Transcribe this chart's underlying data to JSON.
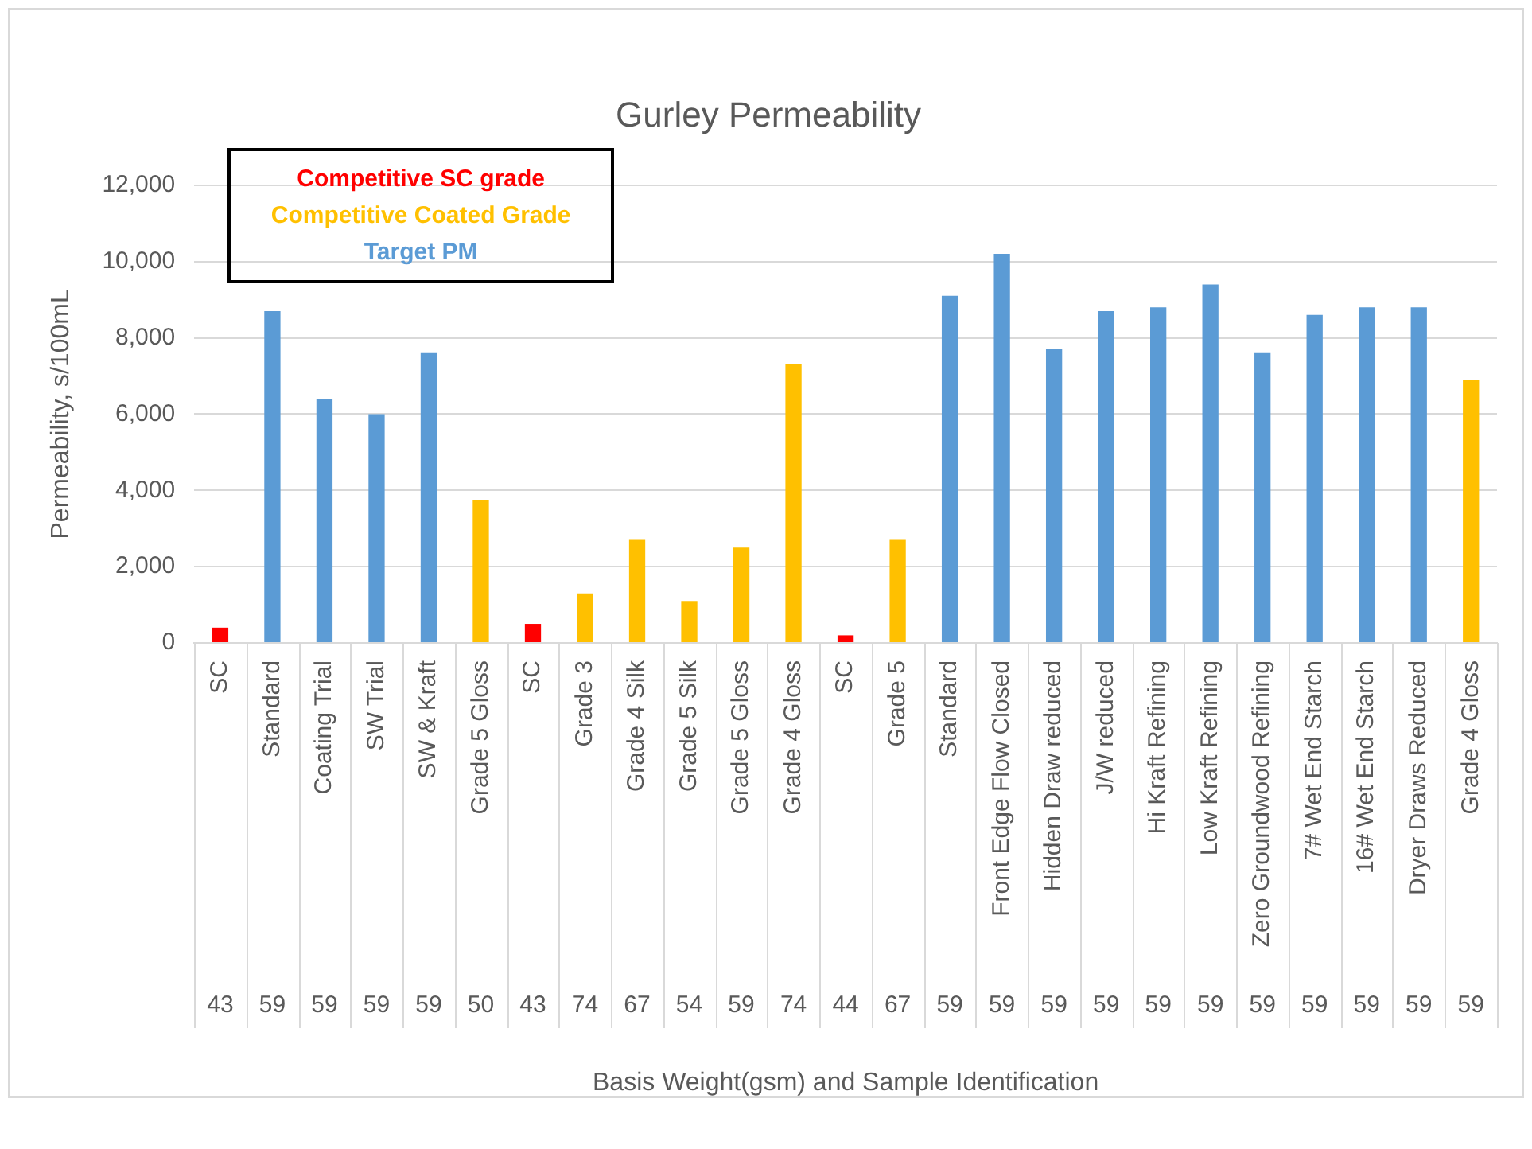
{
  "chart_data": {
    "type": "bar",
    "title": "Gurley Permeability",
    "xlabel": "Basis Weight(gsm) and Sample Identification",
    "ylabel": "Permeability, s/100mL",
    "categories": [
      "SC",
      "Standard",
      "Coating Trial",
      "SW Trial",
      "SW & Kraft",
      "Grade 5 Gloss",
      "SC",
      "Grade 3",
      "Grade 4 Silk",
      "Grade 5 Silk",
      "Grade 5 Gloss",
      "Grade 4 Gloss",
      "SC",
      "Grade 5",
      "Standard",
      "Front Edge Flow Closed",
      "Hidden Draw reduced",
      "J/W reduced",
      "Hi Kraft Refining",
      "Low Kraft Refining",
      "Zero Groundwood Refining",
      "7# Wet End Starch",
      "16# Wet End Starch",
      "Dryer Draws Reduced",
      "Grade 4 Gloss"
    ],
    "annotations": [
      "43",
      "59",
      "59",
      "59",
      "59",
      "50",
      "43",
      "74",
      "67",
      "54",
      "59",
      "74",
      "44",
      "67",
      "59",
      "59",
      "59",
      "59",
      "59",
      "59",
      "59",
      "59",
      "59",
      "59",
      "59"
    ],
    "series": [
      {
        "name": "Competitive SC grade",
        "color": "#ff0000",
        "values": [
          400,
          null,
          null,
          null,
          null,
          null,
          500,
          null,
          null,
          null,
          null,
          null,
          200,
          null,
          null,
          null,
          null,
          null,
          null,
          null,
          null,
          null,
          null,
          null,
          null
        ]
      },
      {
        "name": "Competitive Coated Grade",
        "color": "#ffc000",
        "values": [
          null,
          null,
          null,
          null,
          null,
          3750,
          null,
          1300,
          2700,
          1100,
          2500,
          7300,
          null,
          2700,
          null,
          null,
          null,
          null,
          null,
          null,
          null,
          null,
          null,
          null,
          6900
        ]
      },
      {
        "name": "Target PM",
        "color": "#5b9bd5",
        "values": [
          null,
          8700,
          6400,
          6000,
          7600,
          null,
          null,
          null,
          null,
          null,
          null,
          null,
          null,
          null,
          9100,
          10200,
          7700,
          8700,
          8800,
          9400,
          7600,
          8600,
          8800,
          8800,
          null
        ]
      }
    ],
    "ylim": [
      0,
      12000
    ],
    "yticks": [
      {
        "value": 0,
        "label": "0"
      },
      {
        "value": 2000,
        "label": "2,000"
      },
      {
        "value": 4000,
        "label": "4,000"
      },
      {
        "value": 6000,
        "label": "6,000"
      },
      {
        "value": 8000,
        "label": "8,000"
      },
      {
        "value": 10000,
        "label": "10,000"
      },
      {
        "value": 12000,
        "label": "12,000"
      }
    ],
    "grid": "y",
    "legend": "top left"
  }
}
